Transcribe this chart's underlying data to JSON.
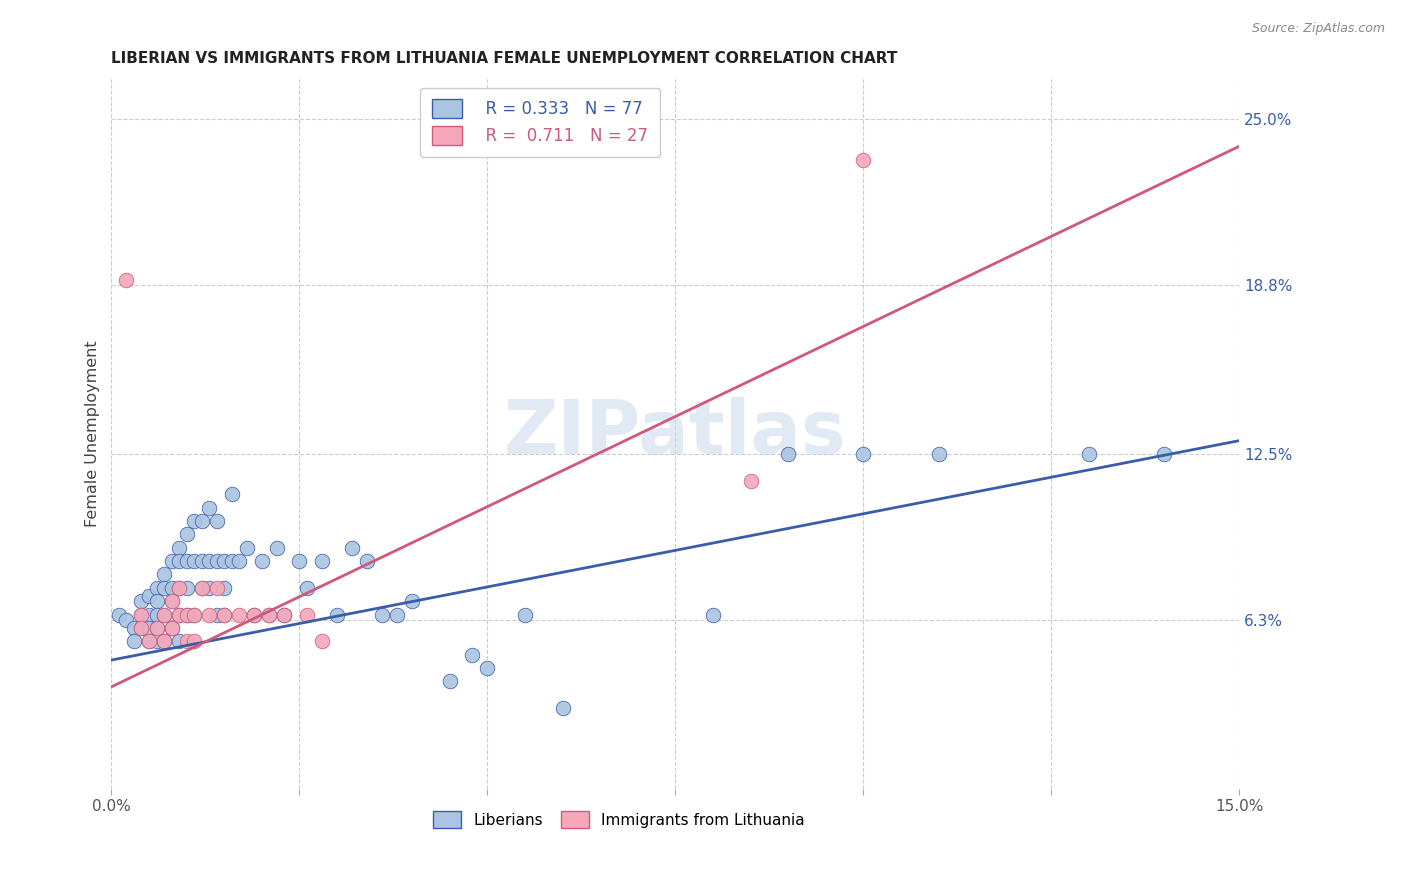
{
  "title": "LIBERIAN VS IMMIGRANTS FROM LITHUANIA FEMALE UNEMPLOYMENT CORRELATION CHART",
  "source": "Source: ZipAtlas.com",
  "ylabel": "Female Unemployment",
  "xlim": [
    0.0,
    0.15
  ],
  "ylim": [
    0.0,
    0.265
  ],
  "ytick_labels_right": [
    "6.3%",
    "12.5%",
    "18.8%",
    "25.0%"
  ],
  "ytick_vals_right": [
    0.063,
    0.125,
    0.188,
    0.25
  ],
  "watermark": "ZIPatlas",
  "color_liberian": "#aac4e2",
  "color_lithuania": "#f4a8ba",
  "line_color_liberian": "#3a5daa",
  "line_color_lithuania": "#d05878",
  "liberian_x": [
    0.001,
    0.002,
    0.003,
    0.003,
    0.004,
    0.004,
    0.004,
    0.005,
    0.005,
    0.005,
    0.005,
    0.006,
    0.006,
    0.006,
    0.006,
    0.006,
    0.007,
    0.007,
    0.007,
    0.007,
    0.008,
    0.008,
    0.008,
    0.008,
    0.009,
    0.009,
    0.009,
    0.009,
    0.009,
    0.01,
    0.01,
    0.01,
    0.01,
    0.011,
    0.011,
    0.011,
    0.012,
    0.012,
    0.012,
    0.013,
    0.013,
    0.013,
    0.014,
    0.014,
    0.014,
    0.015,
    0.015,
    0.015,
    0.016,
    0.016,
    0.017,
    0.018,
    0.019,
    0.02,
    0.021,
    0.022,
    0.023,
    0.025,
    0.026,
    0.028,
    0.03,
    0.032,
    0.034,
    0.036,
    0.038,
    0.04,
    0.045,
    0.048,
    0.05,
    0.055,
    0.06,
    0.08,
    0.09,
    0.1,
    0.11,
    0.13,
    0.14
  ],
  "liberian_y": [
    0.065,
    0.063,
    0.06,
    0.055,
    0.07,
    0.065,
    0.06,
    0.072,
    0.065,
    0.06,
    0.055,
    0.075,
    0.07,
    0.065,
    0.06,
    0.055,
    0.08,
    0.075,
    0.065,
    0.055,
    0.085,
    0.075,
    0.07,
    0.06,
    0.09,
    0.085,
    0.075,
    0.065,
    0.055,
    0.095,
    0.085,
    0.075,
    0.065,
    0.1,
    0.085,
    0.065,
    0.1,
    0.085,
    0.075,
    0.105,
    0.085,
    0.075,
    0.1,
    0.085,
    0.065,
    0.085,
    0.075,
    0.065,
    0.11,
    0.085,
    0.085,
    0.09,
    0.065,
    0.085,
    0.065,
    0.09,
    0.065,
    0.085,
    0.075,
    0.085,
    0.065,
    0.09,
    0.085,
    0.065,
    0.065,
    0.07,
    0.04,
    0.05,
    0.045,
    0.065,
    0.03,
    0.065,
    0.125,
    0.125,
    0.125,
    0.125,
    0.125
  ],
  "lithuania_x": [
    0.002,
    0.004,
    0.004,
    0.005,
    0.006,
    0.007,
    0.007,
    0.008,
    0.008,
    0.009,
    0.009,
    0.01,
    0.01,
    0.011,
    0.011,
    0.012,
    0.013,
    0.014,
    0.015,
    0.017,
    0.019,
    0.021,
    0.023,
    0.026,
    0.028,
    0.085,
    0.1
  ],
  "lithuania_y": [
    0.19,
    0.065,
    0.06,
    0.055,
    0.06,
    0.065,
    0.055,
    0.07,
    0.06,
    0.075,
    0.065,
    0.065,
    0.055,
    0.065,
    0.055,
    0.075,
    0.065,
    0.075,
    0.065,
    0.065,
    0.065,
    0.065,
    0.065,
    0.065,
    0.055,
    0.115,
    0.235
  ],
  "lib_line_x": [
    0.0,
    0.15
  ],
  "lib_line_y": [
    0.048,
    0.13
  ],
  "lit_line_x": [
    0.0,
    0.15
  ],
  "lit_line_y": [
    0.038,
    0.24
  ]
}
